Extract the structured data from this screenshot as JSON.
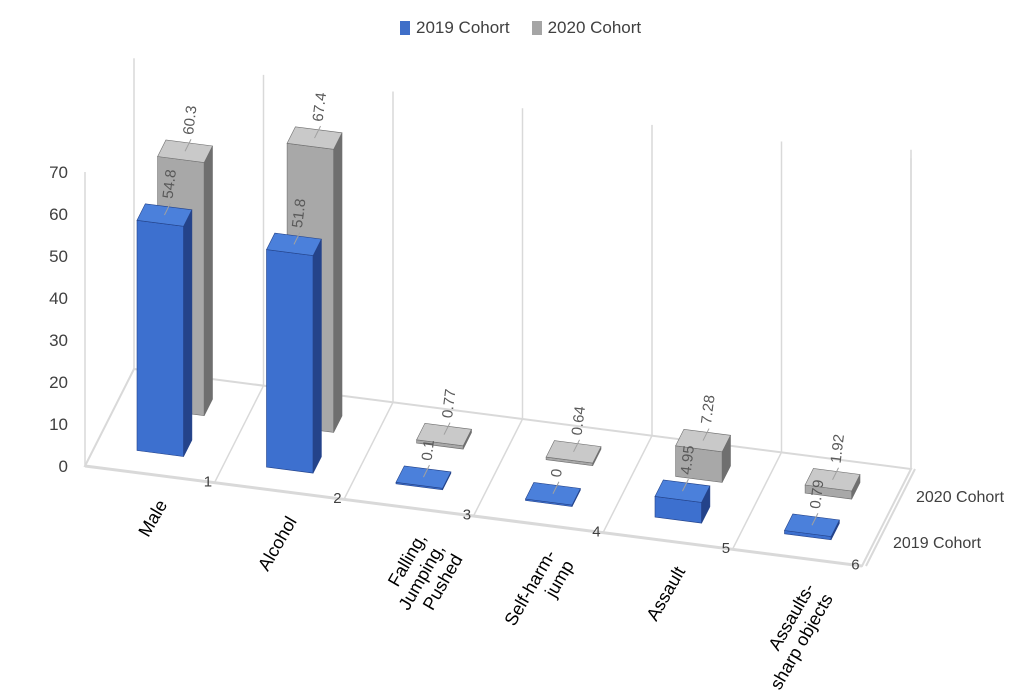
{
  "chart_data": {
    "type": "bar",
    "subtype": "3d-clustered-column",
    "categories": [
      "Male",
      "Alcohol",
      "Falling, Jumping, Pushed",
      "Self-harm-jump",
      "Assault",
      "Assaults- sharp objects"
    ],
    "category_lines": [
      [
        "Male"
      ],
      [
        "Alcohol"
      ],
      [
        "Falling,",
        "Jumping,",
        "Pushed"
      ],
      [
        "Self-harm-",
        "jump"
      ],
      [
        "Assault"
      ],
      [
        "Assaults-",
        "sharp objects"
      ]
    ],
    "category_numbers": [
      "1",
      "2",
      "3",
      "4",
      "5",
      "6"
    ],
    "series": [
      {
        "name": "2019 Cohort",
        "values": [
          54.8,
          51.8,
          0.1,
          0,
          4.95,
          0.79
        ],
        "labels": [
          "54.8",
          "51.8",
          "0.1",
          "0",
          "4.95",
          "0.79"
        ],
        "color": "#4472C4"
      },
      {
        "name": "2020 Cohort",
        "values": [
          60.3,
          67.4,
          0.77,
          0.64,
          7.28,
          1.92
        ],
        "labels": [
          "60.3",
          "67.4",
          "0.77",
          "0.64",
          "7.28",
          "1.92"
        ],
        "color": "#A5A5A5"
      }
    ],
    "depth_labels": [
      "2020 Cohort",
      "2019 Cohort"
    ],
    "y_ticks": [
      "0",
      "10",
      "20",
      "30",
      "40",
      "50",
      "60",
      "70"
    ],
    "ylim": [
      0,
      70
    ],
    "grid": true,
    "legend": "top-center",
    "title": "",
    "xlabel": "",
    "ylabel": ""
  }
}
